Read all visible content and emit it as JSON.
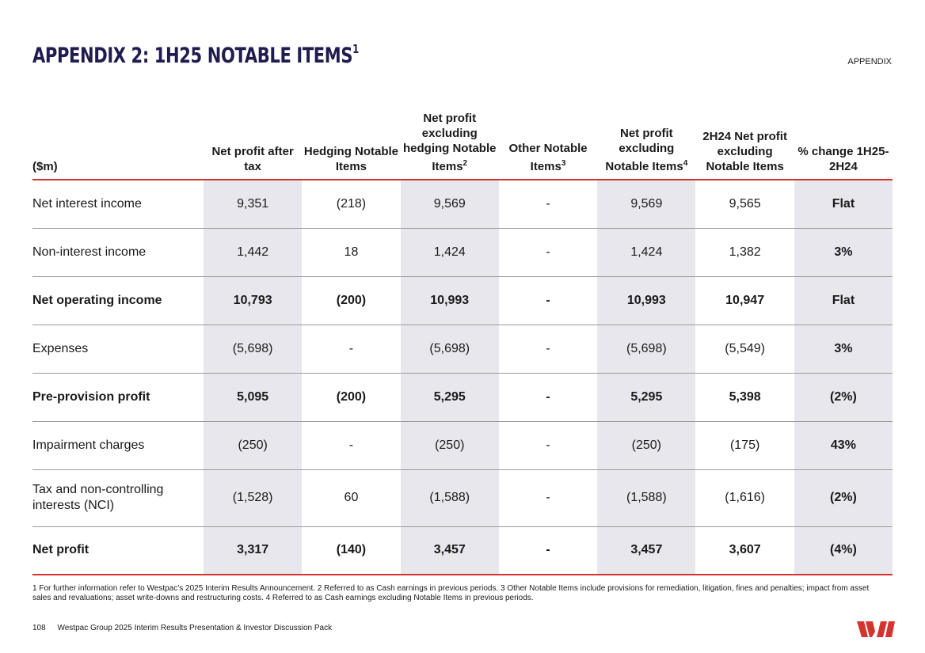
{
  "header": {
    "title": "APPENDIX 2: 1H25 NOTABLE ITEMS",
    "title_sup": "1",
    "section": "APPENDIX"
  },
  "table": {
    "columns": [
      {
        "label": "($m)",
        "sup": ""
      },
      {
        "label": "Net profit after tax",
        "sup": ""
      },
      {
        "label": "Hedging Notable Items",
        "sup": ""
      },
      {
        "label": "Net profit excluding hedging Notable Items",
        "sup": "2"
      },
      {
        "label": "Other Notable Items",
        "sup": "3"
      },
      {
        "label": "Net profit excluding Notable Items",
        "sup": "4"
      },
      {
        "label": "2H24 Net profit excluding Notable Items",
        "sup": ""
      },
      {
        "label": "% change 1H25-2H24",
        "sup": ""
      }
    ],
    "rows": [
      {
        "label": "Net interest income",
        "values": [
          "9,351",
          "(218)",
          "9,569",
          "-",
          "9,569",
          "9,565",
          "Flat"
        ]
      },
      {
        "label": "Non-interest income",
        "values": [
          "1,442",
          "18",
          "1,424",
          "-",
          "1,424",
          "1,382",
          "3%"
        ]
      },
      {
        "label": "Net operating income",
        "values": [
          "10,793",
          "(200)",
          "10,993",
          "-",
          "10,993",
          "10,947",
          "Flat"
        ]
      },
      {
        "label": "Expenses",
        "values": [
          "(5,698)",
          "-",
          "(5,698)",
          "-",
          "(5,698)",
          "(5,549)",
          "3%"
        ]
      },
      {
        "label": "Pre-provision profit",
        "values": [
          "5,095",
          "(200)",
          "5,295",
          "-",
          "5,295",
          "5,398",
          "(2%)"
        ]
      },
      {
        "label": "Impairment charges",
        "values": [
          "(250)",
          "-",
          "(250)",
          "-",
          "(250)",
          "(175)",
          "43%"
        ]
      },
      {
        "label": "Tax and non-controlling interests (NCI)",
        "values": [
          "(1,528)",
          "60",
          "(1,588)",
          "-",
          "(1,588)",
          "(1,616)",
          "(2%)"
        ]
      },
      {
        "label": "Net profit",
        "values": [
          "3,317",
          "(140)",
          "3,457",
          "-",
          "3,457",
          "3,607",
          "(4%)"
        ]
      }
    ]
  },
  "footnote": "1 For further information refer to Westpac’s 2025 Interim Results Announcement. 2 Referred to as Cash earnings in previous periods. 3 Other Notable Items include provisions for remediation, litigation, fines and penalties; impact from asset sales and revaluations; asset write-downs and restructuring costs. 4 Referred to as Cash earnings excluding Notable Items in previous periods.",
  "footer": {
    "page_number": "108",
    "doc_title": "Westpac Group 2025 Interim Results Presentation & Investor Discussion Pack"
  },
  "colors": {
    "title": "#1f1c4f",
    "accent_red": "#d5332f",
    "shade": "#e8e7ee"
  }
}
